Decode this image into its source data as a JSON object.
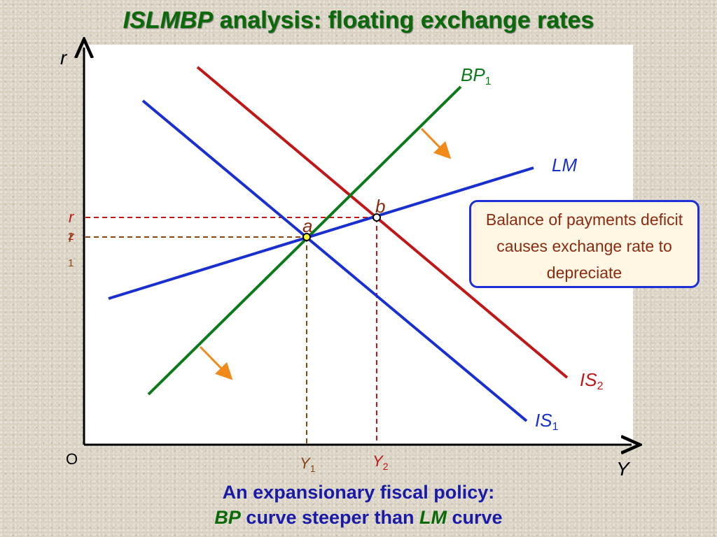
{
  "title": {
    "italic": "ISLMBP",
    "rest": " analysis: floating exchange rates"
  },
  "axes": {
    "y_label": "r",
    "x_label": "Y",
    "origin": "O"
  },
  "curves": {
    "bp": {
      "main": "BP",
      "sub": "1"
    },
    "lm": {
      "main": "LM",
      "sub": ""
    },
    "is2": {
      "main": "IS",
      "sub": "2"
    },
    "is1": {
      "main": "IS",
      "sub": "1"
    }
  },
  "points": {
    "a": "a",
    "b": "b"
  },
  "ticks": {
    "r2": {
      "main": "r",
      "sub": "2"
    },
    "r1": {
      "main": "r",
      "sub": "1"
    },
    "y1": {
      "main": "Y",
      "sub": "1"
    },
    "y2": {
      "main": "Y",
      "sub": "2"
    }
  },
  "callout": {
    "text": "Balance of payments deficit causes exchange rate to depreciate"
  },
  "caption": {
    "line1": "An expansionary fiscal policy:",
    "line2_bp": "BP",
    "line2_mid": " curve steeper than ",
    "line2_lm": "LM",
    "line2_end": " curve"
  },
  "colors": {
    "bp": "#0b7a1a",
    "lm": "#1a2fd0",
    "is1": "#1a2fd0",
    "is2": "#c01818",
    "arrow": "#f08a1a",
    "guide_r2": "#c01818",
    "guide_r1": "#8b4513"
  }
}
